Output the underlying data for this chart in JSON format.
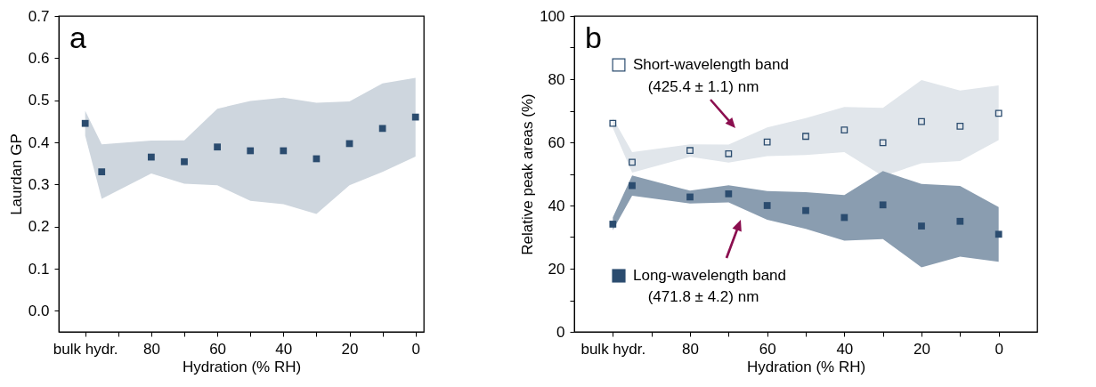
{
  "chart_data": [
    {
      "type": "scatter",
      "title": "a",
      "xlabel": "Hydration (% RH)",
      "ylabel": "Laurdan GP",
      "marker": "square",
      "grid": false,
      "x": [
        100,
        95,
        80,
        70,
        60,
        50,
        40,
        30,
        20,
        10,
        0
      ],
      "xlim": [
        108,
        -2.5
      ],
      "xticks": [
        {
          "value": 100,
          "label": "bulk hydr."
        },
        {
          "value": 90,
          "label": null
        },
        80,
        {
          "value": 70,
          "label": null
        },
        60,
        {
          "value": 50,
          "label": null
        },
        40,
        {
          "value": 30,
          "label": null
        },
        20,
        {
          "value": 10,
          "label": null
        },
        0
      ],
      "ylim": [
        -0.05,
        0.7
      ],
      "yticks": [
        {
          "value": 0,
          "label": "0.0"
        },
        0.1,
        0.2,
        0.3,
        0.4,
        0.5,
        0.6,
        0.7
      ],
      "series": [
        {
          "color": "#2b4c6f",
          "values": [
            0.445,
            0.33,
            0.365,
            0.354,
            0.389,
            0.38,
            0.38,
            0.361,
            0.397,
            0.433,
            0.46
          ],
          "lower": [
            0.416,
            0.266,
            0.326,
            0.302,
            0.298,
            0.261,
            0.253,
            0.23,
            0.298,
            0.33,
            0.366
          ],
          "upper": [
            0.475,
            0.395,
            0.404,
            0.405,
            0.48,
            0.498,
            0.506,
            0.494,
            0.497,
            0.54,
            0.553
          ]
        }
      ]
    },
    {
      "type": "scatter",
      "title": "b",
      "xlabel": "Hydration (% RH)",
      "ylabel": "Relative peak areas (%)",
      "marker": "square",
      "grid": false,
      "legend": "left",
      "x": [
        100,
        95,
        80,
        70,
        60,
        50,
        40,
        30,
        20,
        10,
        0
      ],
      "xlim": [
        110,
        -10
      ],
      "xticks": [
        {
          "value": 100,
          "label": "bulk hydr."
        },
        {
          "value": 90,
          "label": null
        },
        80,
        {
          "value": 70,
          "label": null
        },
        60,
        {
          "value": 50,
          "label": null
        },
        40,
        {
          "value": 30,
          "label": null
        },
        20,
        {
          "value": 10,
          "label": null
        },
        0
      ],
      "ylim": [
        0,
        100
      ],
      "yticks": [
        0,
        {
          "value": 10,
          "label": null
        },
        20,
        {
          "value": 30,
          "label": null
        },
        40,
        {
          "value": 50,
          "label": null
        },
        60,
        {
          "value": 70,
          "label": null
        },
        80,
        {
          "value": 90,
          "label": null
        },
        100
      ],
      "annotations": [
        "(425.4 ± 1.1) nm",
        "(471.8 ± 4.2) nm"
      ],
      "series": [
        {
          "name": "Short-wavelength band",
          "color": "#2b4c6f",
          "marker": "square_open",
          "values": [
            66.0,
            53.7,
            57.4,
            56.4,
            60.1,
            61.9,
            63.9,
            59.9,
            66.6,
            65.1,
            69.2
          ],
          "lower": [
            64.5,
            50.4,
            55.4,
            53.6,
            55.6,
            56.0,
            56.9,
            49.3,
            53.4,
            54.1,
            60.7
          ],
          "upper": [
            67.7,
            56.9,
            59.4,
            59.3,
            64.7,
            67.7,
            71.2,
            70.9,
            79.7,
            76.4,
            78.0
          ]
        },
        {
          "name": "Long-wavelength band",
          "color": "#2b4c6f",
          "values": [
            34.1,
            46.3,
            42.7,
            43.7,
            40.0,
            38.4,
            36.2,
            40.2,
            33.5,
            35.0,
            30.9
          ],
          "lower": [
            32.2,
            43.1,
            40.6,
            41.0,
            35.5,
            32.6,
            28.9,
            29.4,
            20.4,
            23.8,
            22.2
          ],
          "upper": [
            36.3,
            49.5,
            44.7,
            46.4,
            44.6,
            44.2,
            43.3,
            50.9,
            46.8,
            46.2,
            39.5
          ]
        }
      ]
    }
  ]
}
